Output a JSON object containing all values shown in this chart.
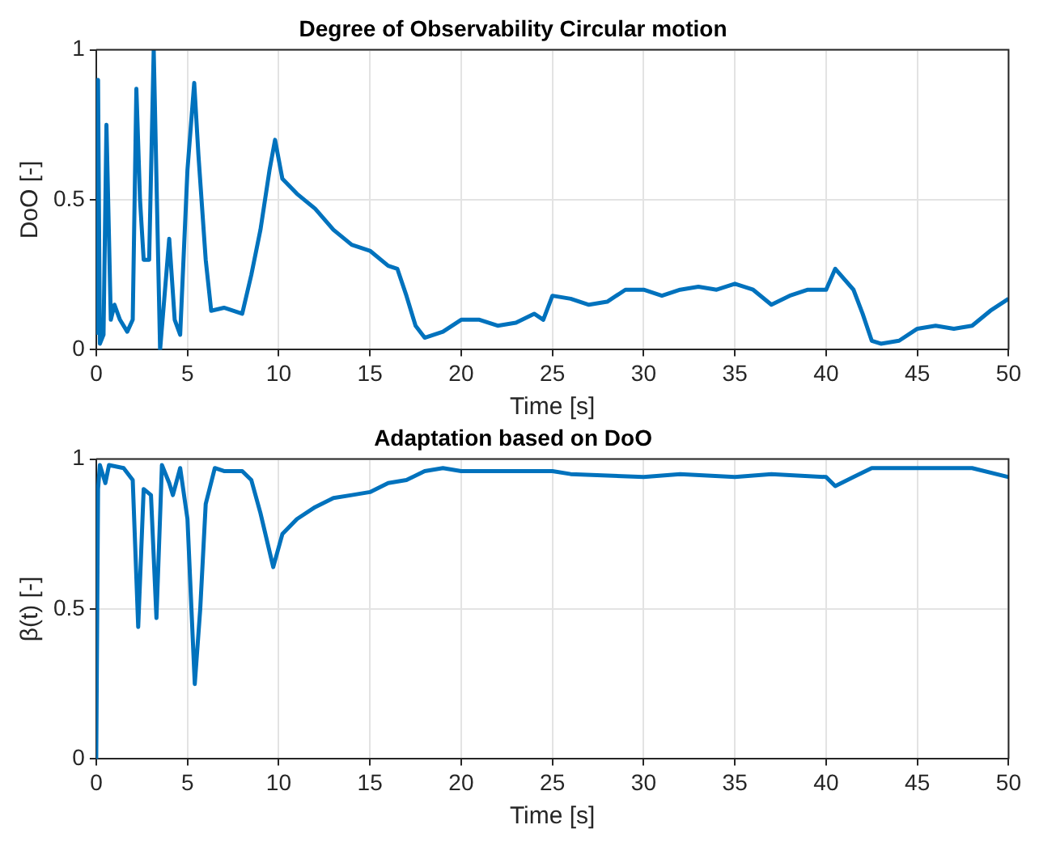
{
  "chart_data": [
    {
      "type": "line",
      "title": "Degree of Observability Circular motion",
      "xlabel": "Time [s]",
      "ylabel": "DoO [-]",
      "xlim": [
        0,
        50
      ],
      "xticks": [
        0,
        5,
        10,
        15,
        20,
        25,
        30,
        35,
        40,
        45,
        50
      ],
      "ylim": [
        0,
        1
      ],
      "yticks": [
        0,
        0.5,
        1
      ],
      "grid": true,
      "legend": false,
      "series": [
        {
          "color": "#0072bd",
          "x": [
            0,
            0.1,
            0.2,
            0.4,
            0.56,
            0.8,
            1.0,
            1.3,
            1.7,
            2.0,
            2.2,
            2.4,
            2.6,
            2.9,
            3.15,
            3.5,
            4.0,
            4.3,
            4.6,
            5.0,
            5.37,
            5.6,
            6.0,
            6.3,
            7,
            8,
            8.5,
            9,
            9.5,
            9.8,
            10.2,
            11,
            12,
            13,
            14,
            15,
            16,
            16.5,
            17,
            17.5,
            18,
            19,
            20,
            21,
            22,
            23,
            24,
            24.5,
            25,
            26,
            27,
            28,
            29,
            30,
            31,
            32,
            33,
            34,
            35,
            36,
            37,
            38,
            39,
            40,
            40.5,
            41.5,
            42,
            42.5,
            43,
            44,
            45,
            46,
            47,
            48,
            49,
            50
          ],
          "values": [
            0.05,
            0.9,
            0.02,
            0.05,
            0.75,
            0.1,
            0.15,
            0.1,
            0.06,
            0.1,
            0.87,
            0.5,
            0.3,
            0.3,
            1.0,
            0.0,
            0.37,
            0.1,
            0.05,
            0.6,
            0.89,
            0.65,
            0.3,
            0.13,
            0.14,
            0.12,
            0.25,
            0.4,
            0.6,
            0.7,
            0.57,
            0.52,
            0.47,
            0.4,
            0.35,
            0.33,
            0.28,
            0.27,
            0.18,
            0.08,
            0.04,
            0.06,
            0.1,
            0.1,
            0.08,
            0.09,
            0.12,
            0.1,
            0.18,
            0.17,
            0.15,
            0.16,
            0.2,
            0.2,
            0.18,
            0.2,
            0.21,
            0.2,
            0.22,
            0.2,
            0.15,
            0.18,
            0.2,
            0.2,
            0.27,
            0.2,
            0.12,
            0.03,
            0.02,
            0.03,
            0.07,
            0.08,
            0.07,
            0.08,
            0.13,
            0.17
          ]
        }
      ]
    },
    {
      "type": "line",
      "title": "Adaptation based on DoO",
      "xlabel": "Time [s]",
      "ylabel": "β(t) [-]",
      "xlim": [
        0,
        50
      ],
      "xticks": [
        0,
        5,
        10,
        15,
        20,
        25,
        30,
        35,
        40,
        45,
        50
      ],
      "ylim": [
        0,
        1
      ],
      "yticks": [
        0,
        0.5,
        1
      ],
      "grid": true,
      "legend": false,
      "series": [
        {
          "color": "#0072bd",
          "x": [
            0,
            0.1,
            0.2,
            0.5,
            0.7,
            1.5,
            2.0,
            2.3,
            2.6,
            3.0,
            3.3,
            3.6,
            4.0,
            4.2,
            4.6,
            5.0,
            5.4,
            5.7,
            6.0,
            6.5,
            7,
            8,
            8.5,
            9,
            9.7,
            10.2,
            11,
            12,
            13,
            14,
            15,
            16,
            17,
            18,
            19,
            20,
            25,
            26,
            30,
            32,
            35,
            37,
            40,
            40.5,
            41.5,
            42.5,
            45,
            48,
            50
          ],
          "values": [
            0,
            0.9,
            0.98,
            0.92,
            0.98,
            0.97,
            0.93,
            0.44,
            0.9,
            0.88,
            0.47,
            0.98,
            0.92,
            0.88,
            0.97,
            0.8,
            0.25,
            0.5,
            0.85,
            0.97,
            0.96,
            0.96,
            0.93,
            0.82,
            0.64,
            0.75,
            0.8,
            0.84,
            0.87,
            0.88,
            0.89,
            0.92,
            0.93,
            0.96,
            0.97,
            0.96,
            0.96,
            0.95,
            0.94,
            0.95,
            0.94,
            0.95,
            0.94,
            0.91,
            0.94,
            0.97,
            0.97,
            0.97,
            0.94
          ]
        }
      ]
    }
  ]
}
